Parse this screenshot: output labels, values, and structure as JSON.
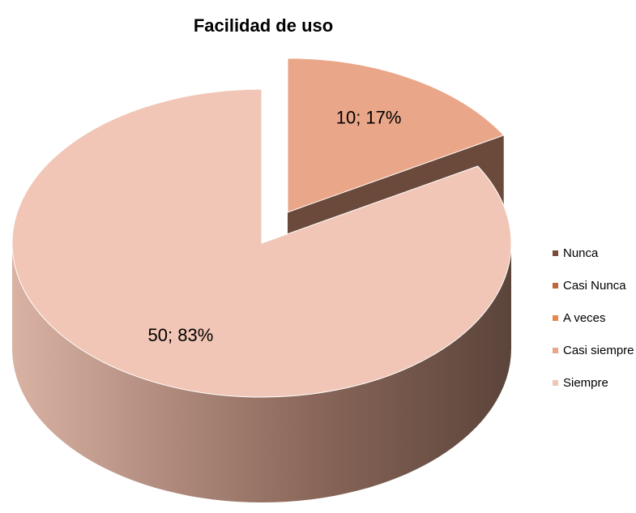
{
  "chart_data": {
    "type": "pie",
    "title": "Facilidad de uso",
    "categories": [
      "Nunca",
      "Casi Nunca",
      "A veces",
      "Casi siempre",
      "Siempre"
    ],
    "values": [
      0,
      0,
      0,
      10,
      50
    ],
    "value_labels": [
      null,
      null,
      null,
      "10; 17%",
      "50; 83%"
    ],
    "colors": [
      "#7b4b38",
      "#c0663c",
      "#e58a4c",
      "#eaa688",
      "#f1c6b6"
    ],
    "exploded_slice": "Casi siempre",
    "legend": "right"
  }
}
